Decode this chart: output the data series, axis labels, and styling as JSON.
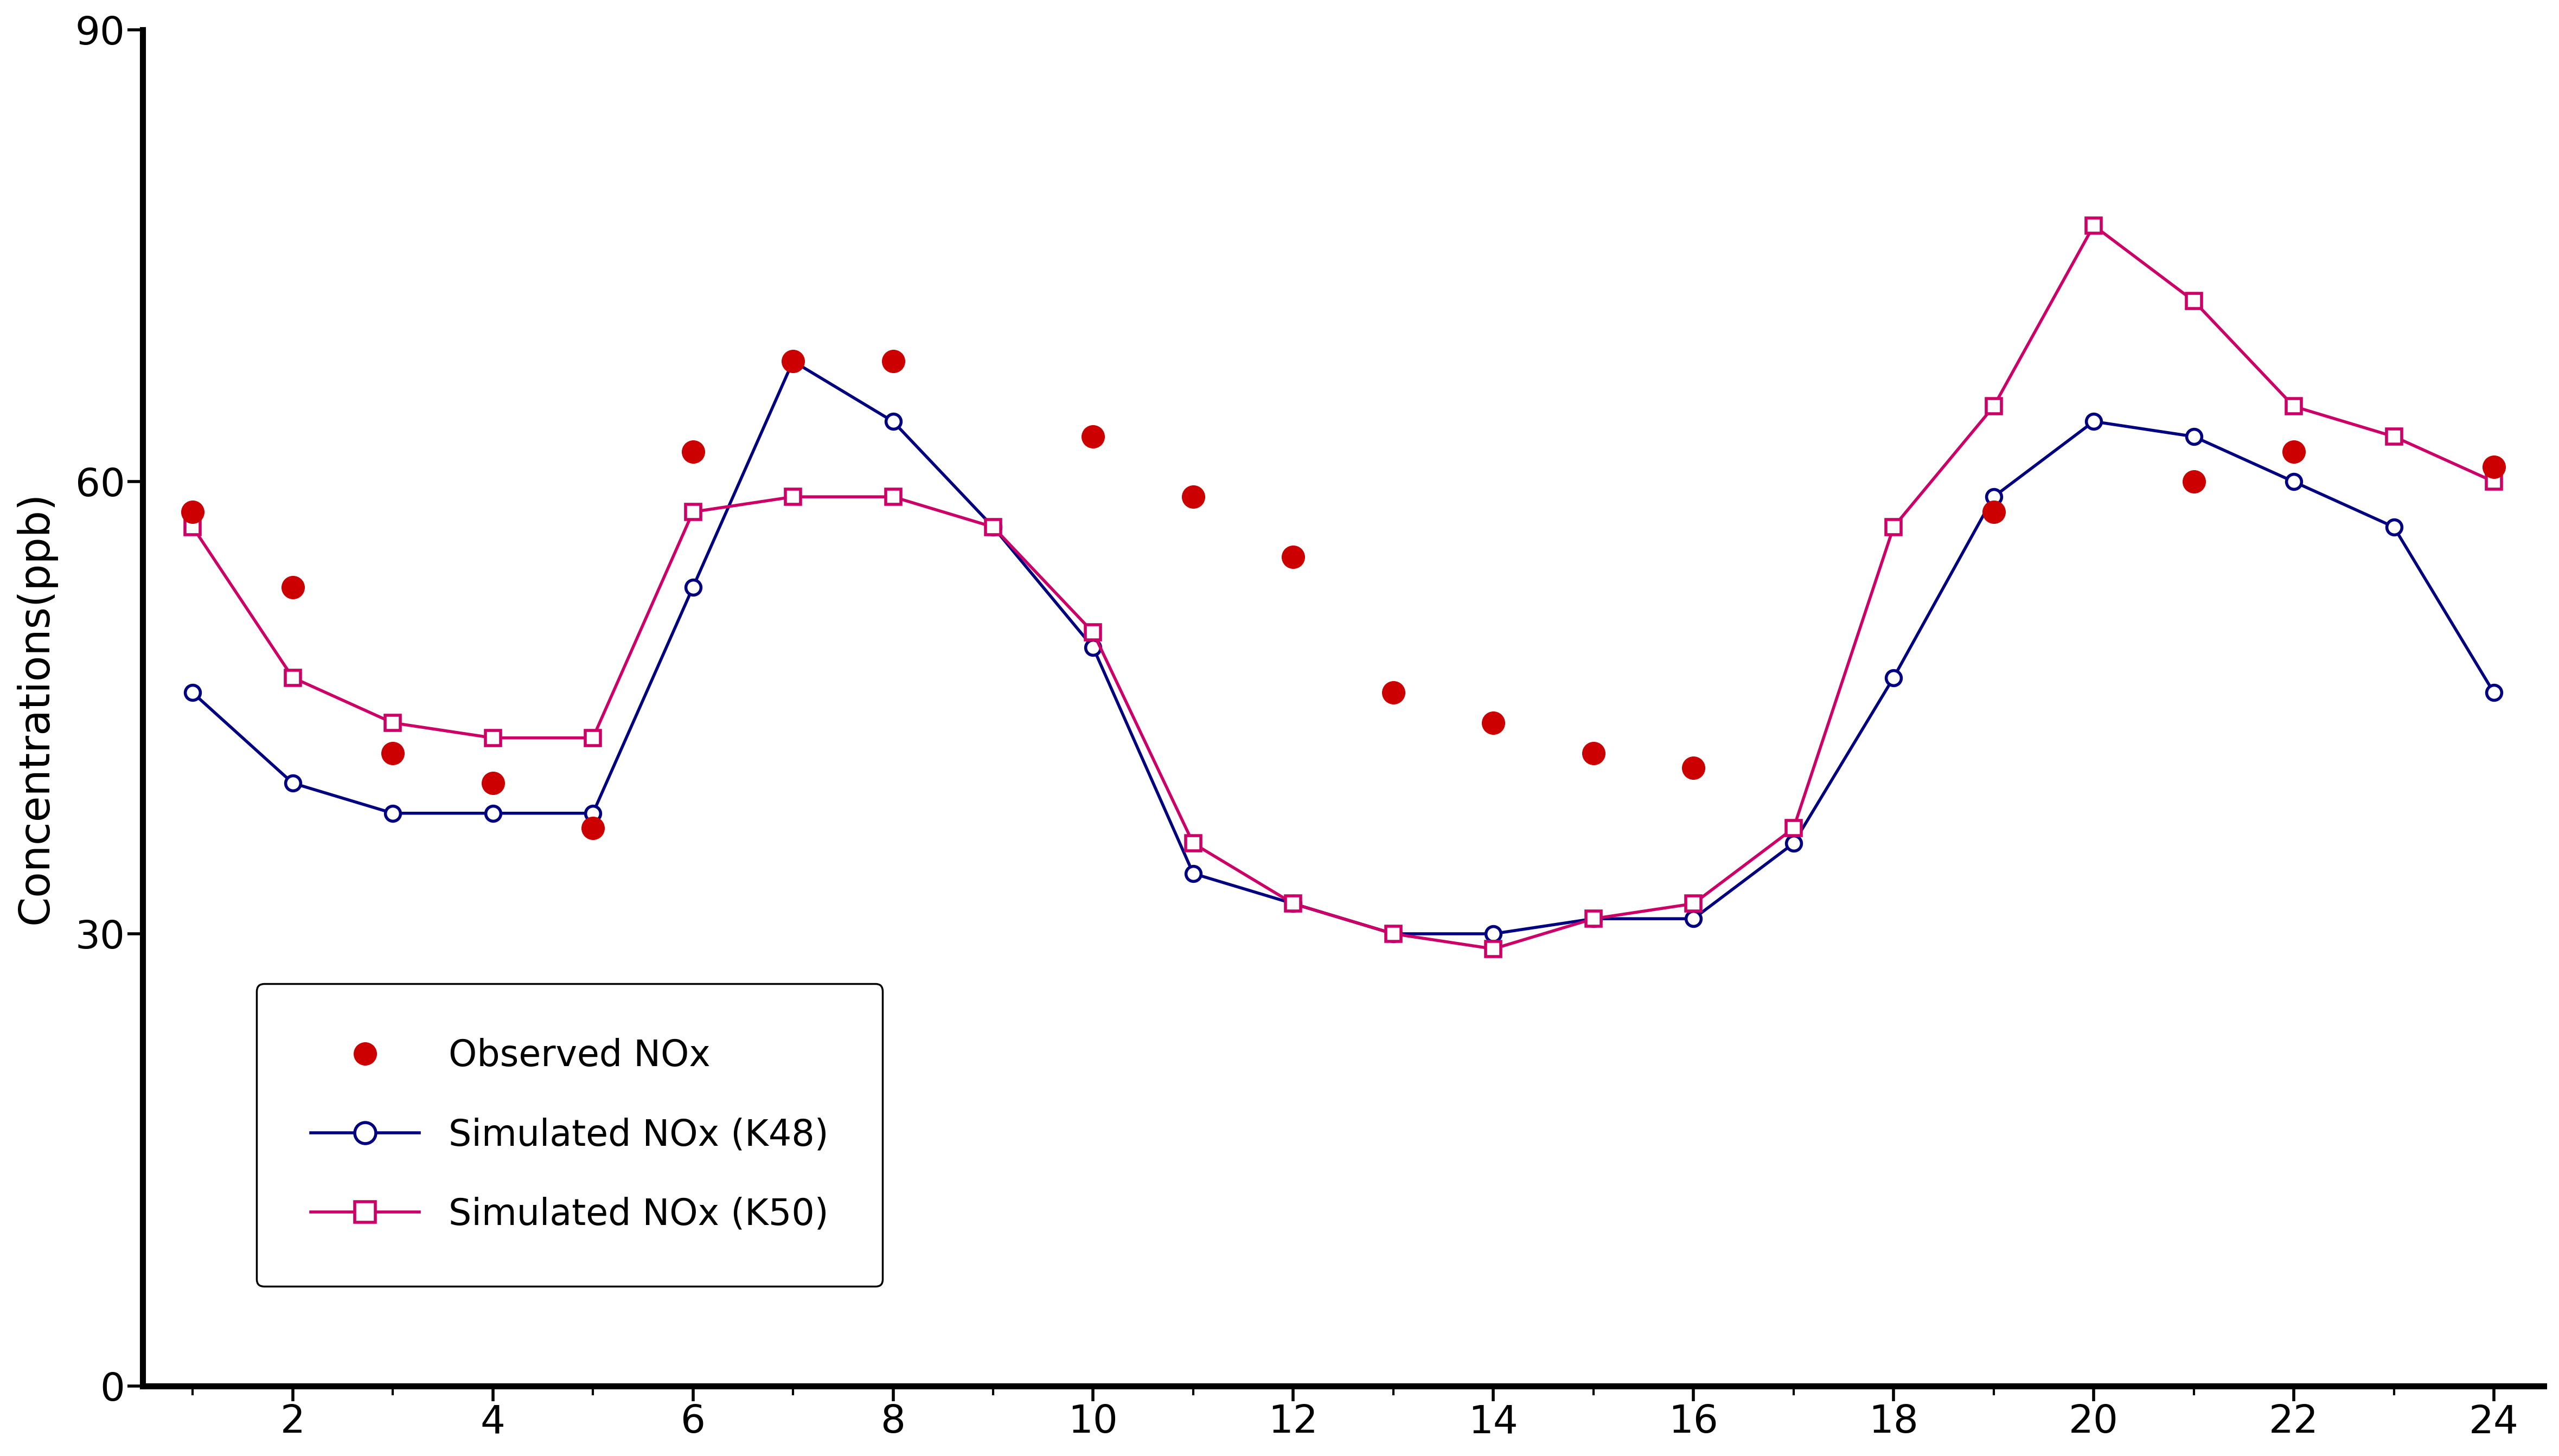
{
  "hours": [
    1,
    2,
    3,
    4,
    5,
    6,
    7,
    8,
    9,
    10,
    11,
    12,
    13,
    14,
    15,
    16,
    17,
    18,
    19,
    20,
    21,
    22,
    23,
    24
  ],
  "observed": [
    58,
    53,
    42,
    40,
    37,
    62,
    68,
    68,
    null,
    63,
    59,
    55,
    46,
    44,
    42,
    41,
    null,
    null,
    58,
    null,
    60,
    62,
    null,
    61
  ],
  "k48": [
    46,
    40,
    38,
    38,
    38,
    53,
    68,
    64,
    57,
    49,
    34,
    32,
    30,
    30,
    31,
    31,
    36,
    47,
    59,
    64,
    63,
    60,
    57,
    46
  ],
  "k50": [
    57,
    47,
    44,
    43,
    43,
    58,
    59,
    59,
    57,
    50,
    36,
    32,
    30,
    29,
    31,
    32,
    37,
    57,
    65,
    77,
    72,
    65,
    63,
    60
  ],
  "ylabel": "Concentrations(ppb)",
  "xlim": [
    0.5,
    24.5
  ],
  "ylim": [
    0,
    90
  ],
  "yticks": [
    0,
    30,
    60,
    90
  ],
  "xticks_major": [
    2,
    4,
    6,
    8,
    10,
    12,
    14,
    16,
    18,
    20,
    22,
    24
  ],
  "xticks_minor": [
    1,
    3,
    5,
    7,
    9,
    11,
    13,
    15,
    17,
    19,
    21,
    23
  ],
  "k48_color": "#000080",
  "k50_color": "#CC0066",
  "obs_color": "#CC0000",
  "background_color": "#ffffff",
  "legend_labels": [
    "Observed NOx",
    "Simulated NOx (K48)",
    "Simulated NOx (K50)"
  ],
  "spine_linewidth": 8,
  "line_linewidth": 4,
  "marker_size": 20,
  "tick_labelsize": 52,
  "ylabel_fontsize": 56,
  "legend_fontsize": 48
}
